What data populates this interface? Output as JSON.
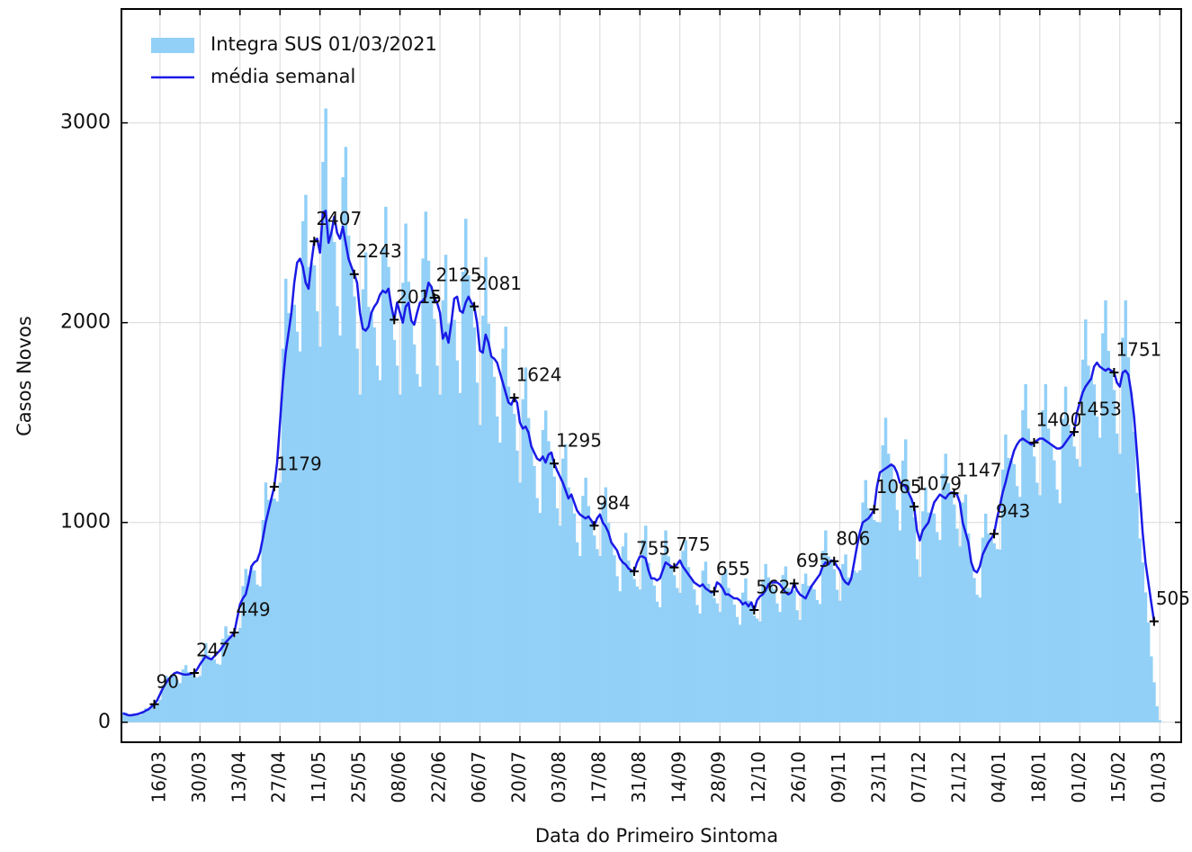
{
  "chart_data": {
    "type": "bar",
    "xlabel": "Data do Primeiro Sintoma",
    "ylabel": "Casos Novos",
    "ylim": [
      -100,
      3570
    ],
    "yticks": [
      0,
      1000,
      2000,
      3000
    ],
    "grid": true,
    "legend": "upper left",
    "categories": [
      null,
      null,
      null,
      null,
      null,
      null,
      null,
      null,
      null,
      null,
      null,
      null,
      null,
      "16/03",
      null,
      null,
      null,
      null,
      null,
      null,
      null,
      null,
      null,
      null,
      null,
      null,
      null,
      "30/03",
      null,
      null,
      null,
      null,
      null,
      null,
      null,
      null,
      null,
      null,
      null,
      null,
      null,
      "13/04",
      null,
      null,
      null,
      null,
      null,
      null,
      null,
      null,
      null,
      null,
      null,
      null,
      null,
      "27/04",
      null,
      null,
      null,
      null,
      null,
      null,
      null,
      null,
      null,
      null,
      null,
      null,
      null,
      "11/05",
      null,
      null,
      null,
      null,
      null,
      null,
      null,
      null,
      null,
      null,
      null,
      null,
      null,
      "25/05",
      null,
      null,
      null,
      null,
      null,
      null,
      null,
      null,
      null,
      null,
      null,
      null,
      null,
      "08/06",
      null,
      null,
      null,
      null,
      null,
      null,
      null,
      null,
      null,
      null,
      null,
      null,
      null,
      "22/06",
      null,
      null,
      null,
      null,
      null,
      null,
      null,
      null,
      null,
      null,
      null,
      null,
      null,
      "06/07",
      null,
      null,
      null,
      null,
      null,
      null,
      null,
      null,
      null,
      null,
      null,
      null,
      null,
      "20/07",
      null,
      null,
      null,
      null,
      null,
      null,
      null,
      null,
      null,
      null,
      null,
      null,
      null,
      "03/08",
      null,
      null,
      null,
      null,
      null,
      null,
      null,
      null,
      null,
      null,
      null,
      null,
      null,
      "17/08",
      null,
      null,
      null,
      null,
      null,
      null,
      null,
      null,
      null,
      null,
      null,
      null,
      null,
      "31/08",
      null,
      null,
      null,
      null,
      null,
      null,
      null,
      null,
      null,
      null,
      null,
      null,
      null,
      "14/09",
      null,
      null,
      null,
      null,
      null,
      null,
      null,
      null,
      null,
      null,
      null,
      null,
      null,
      "28/09",
      null,
      null,
      null,
      null,
      null,
      null,
      null,
      null,
      null,
      null,
      null,
      null,
      null,
      "12/10",
      null,
      null,
      null,
      null,
      null,
      null,
      null,
      null,
      null,
      null,
      null,
      null,
      null,
      "26/10",
      null,
      null,
      null,
      null,
      null,
      null,
      null,
      null,
      null,
      null,
      null,
      null,
      null,
      "09/11",
      null,
      null,
      null,
      null,
      null,
      null,
      null,
      null,
      null,
      null,
      null,
      null,
      null,
      "23/11",
      null,
      null,
      null,
      null,
      null,
      null,
      null,
      null,
      null,
      null,
      null,
      null,
      null,
      "07/12",
      null,
      null,
      null,
      null,
      null,
      null,
      null,
      null,
      null,
      null,
      null,
      null,
      null,
      "21/12",
      null,
      null,
      null,
      null,
      null,
      null,
      null,
      null,
      null,
      null,
      null,
      null,
      null,
      "04/01",
      null,
      null,
      null,
      null,
      null,
      null,
      null,
      null,
      null,
      null,
      null,
      null,
      null,
      "18/01",
      null,
      null,
      null,
      null,
      null,
      null,
      null,
      null,
      null,
      null,
      null,
      null,
      null,
      "01/02",
      null,
      null,
      null,
      null,
      null,
      null,
      null,
      null,
      null,
      null,
      null,
      null,
      null,
      "15/02",
      null,
      null,
      null,
      null,
      null,
      null,
      null,
      null,
      null,
      null,
      null,
      null,
      null,
      "01/03"
    ],
    "series": [
      {
        "name": "Integra SUS 01/03/2021",
        "type": "bar",
        "color": "#92d0f7",
        "values": [
          50,
          48,
          37,
          35,
          36,
          34,
          36,
          55,
          70,
          68,
          78,
          86,
          94,
          112,
          187,
          234,
          226,
          230,
          233,
          213,
          196,
          264,
          286,
          252,
          244,
          235,
          225,
          232,
          341,
          396,
          336,
          315,
          314,
          293,
          288,
          418,
          480,
          436,
          430,
          427,
          442,
          472,
          682,
          768,
          735,
          780,
          760,
          689,
          680,
          1012,
          1200,
          1113,
          1120,
          1120,
          1105,
          1200,
          1870,
          2220,
          2048,
          2050,
          2090,
          1955,
          1856,
          2508,
          2640,
          2279,
          2300,
          2287,
          2057,
          1880,
          2805,
          3072,
          2520,
          2450,
          2404,
          2083,
          1936,
          2728,
          2880,
          2436,
          2280,
          2131,
          1870,
          1640,
          2167,
          2352,
          2079,
          2050,
          1976,
          1785,
          1712,
          2376,
          2580,
          2279,
          2080,
          1914,
          1785,
          1640,
          2200,
          2496,
          2205,
          2010,
          1891,
          1743,
          1680,
          2321,
          2556,
          2310,
          2180,
          2019,
          1785,
          1640,
          2112,
          2340,
          1995,
          2000,
          2014,
          1811,
          1648,
          2255,
          2520,
          2237,
          2100,
          1977,
          1700,
          1488,
          2035,
          2328,
          1995,
          1830,
          1729,
          1530,
          1400,
          1870,
          1980,
          1680,
          1590,
          1543,
          1360,
          1200,
          1617,
          1776,
          1523,
          1380,
          1283,
          1122,
          1048,
          1463,
          1560,
          1407,
          1350,
          1230,
          1071,
          984,
          1320,
          1392,
          1176,
          1140,
          1045,
          901,
          832,
          1133,
          1224,
          1082,
          1010,
          935,
          867,
          832,
          1100,
          1176,
          998,
          900,
          836,
          731,
          656,
          880,
          948,
          809,
          760,
          717,
          680,
          664,
          913,
          984,
          798,
          720,
          684,
          604,
          576,
          836,
          960,
          830,
          780,
          736,
          672,
          648,
          858,
          912,
          777,
          720,
          665,
          587,
          544,
          759,
          804,
          693,
          650,
          622,
          595,
          552,
          737,
          768,
          672,
          630,
          589,
          527,
          488,
          649,
          720,
          609,
          600,
          534,
          519,
          504,
          704,
          792,
          725,
          700,
          665,
          595,
          552,
          737,
          780,
          672,
          650,
          660,
          561,
          512,
          693,
          744,
          683,
          680,
          665,
          612,
          592,
          858,
          960,
          830,
          810,
          766,
          663,
          608,
          792,
          840,
          725,
          720,
          760,
          748,
          760,
          1100,
          1212,
          1071,
          1040,
          1012,
          1003,
          1000,
          1386,
          1524,
          1344,
          1290,
          1216,
          1063,
          960,
          1309,
          1416,
          1208,
          1120,
          1025,
          816,
          728,
          1056,
          1176,
          1050,
          1050,
          1045,
          952,
          912,
          1243,
          1344,
          1197,
          1150,
          1090,
          969,
          880,
          1100,
          1140,
          945,
          800,
          722,
          638,
          624,
          924,
          1044,
          945,
          920,
          896,
          867,
          864,
          1265,
          1440,
          1323,
          1310,
          1292,
          1182,
          1128,
          1562,
          1692,
          1470,
          1390,
          1330,
          1199,
          1136,
          1562,
          1692,
          1470,
          1390,
          1311,
          1165,
          1096,
          1518,
          1680,
          1491,
          1440,
          1380,
          1318,
          1280,
          1815,
          2016,
          1785,
          1720,
          1691,
          1530,
          1424,
          1947,
          2112,
          1859,
          1760,
          1663,
          1445,
          1344,
          1925,
          2112,
          1827,
          1650,
          1454,
          1148,
          920,
          800,
          650,
          500,
          330,
          200,
          80,
          10
        ]
      },
      {
        "name": "média  semanal",
        "type": "line",
        "color": "#1a1ae6",
        "values": [
          45,
          40,
          35,
          35,
          38,
          40,
          45,
          50,
          58,
          65,
          78,
          90,
          110,
          140,
          170,
          195,
          215,
          230,
          245,
          250,
          245,
          240,
          238,
          240,
          244,
          247,
          265,
          290,
          310,
          330,
          320,
          315,
          330,
          345,
          360,
          380,
          400,
          415,
          430,
          449,
          520,
          590,
          620,
          640,
          700,
          780,
          800,
          810,
          850,
          920,
          1000,
          1060,
          1120,
          1179,
          1300,
          1500,
          1700,
          1850,
          1950,
          2050,
          2200,
          2300,
          2320,
          2280,
          2200,
          2170,
          2300,
          2407,
          2420,
          2350,
          2550,
          2560,
          2400,
          2450,
          2530,
          2450,
          2420,
          2480,
          2400,
          2320,
          2280,
          2243,
          2200,
          2050,
          1970,
          1960,
          1980,
          2050,
          2080,
          2100,
          2140,
          2160,
          2150,
          2170,
          2080,
          2015,
          2100,
          2050,
          2000,
          2080,
          2100,
          2010,
          1990,
          2050,
          2100,
          2110,
          2130,
          2200,
          2180,
          2125,
          2100,
          2050,
          1920,
          1950,
          1900,
          2000,
          2120,
          2130,
          2060,
          2050,
          2100,
          2130,
          2100,
          2081,
          2000,
          1860,
          1850,
          1940,
          1900,
          1830,
          1820,
          1800,
          1750,
          1700,
          1650,
          1600,
          1590,
          1624,
          1600,
          1500,
          1470,
          1480,
          1450,
          1380,
          1350,
          1320,
          1310,
          1330,
          1300,
          1340,
          1350,
          1295,
          1260,
          1230,
          1200,
          1160,
          1120,
          1140,
          1100,
          1060,
          1040,
          1030,
          1020,
          1030,
          1010,
          984,
          1020,
          1040,
          1000,
          980,
          950,
          900,
          880,
          860,
          820,
          800,
          790,
          770,
          760,
          755,
          800,
          830,
          830,
          820,
          760,
          720,
          720,
          710,
          720,
          760,
          800,
          790,
          780,
          775,
          790,
          810,
          780,
          760,
          740,
          720,
          700,
          690,
          680,
          690,
          670,
          660,
          650,
          655,
          700,
          690,
          670,
          640,
          640,
          630,
          620,
          620,
          610,
          590,
          600,
          580,
          600,
          562,
          610,
          630,
          640,
          660,
          690,
          700,
          700,
          700,
          690,
          670,
          650,
          640,
          650,
          695,
          660,
          640,
          630,
          620,
          650,
          680,
          700,
          720,
          740,
          780,
          800,
          790,
          810,
          806,
          780,
          760,
          720,
          700,
          690,
          720,
          800,
          880,
          950,
          1000,
          1010,
          1020,
          1040,
          1065,
          1180,
          1250,
          1260,
          1270,
          1280,
          1290,
          1280,
          1250,
          1200,
          1190,
          1180,
          1150,
          1120,
          1079,
          960,
          910,
          960,
          980,
          1000,
          1050,
          1100,
          1120,
          1140,
          1130,
          1120,
          1140,
          1150,
          1147,
          1140,
          1100,
          1000,
          950,
          900,
          800,
          760,
          750,
          780,
          840,
          870,
          900,
          920,
          943,
          1020,
          1080,
          1150,
          1200,
          1260,
          1310,
          1360,
          1390,
          1410,
          1420,
          1410,
          1400,
          1390,
          1400,
          1410,
          1420,
          1420,
          1410,
          1400,
          1390,
          1380,
          1370,
          1370,
          1380,
          1400,
          1420,
          1440,
          1453,
          1550,
          1600,
          1650,
          1680,
          1700,
          1720,
          1780,
          1800,
          1780,
          1770,
          1760,
          1770,
          1760,
          1751,
          1700,
          1680,
          1750,
          1760,
          1740,
          1650,
          1530,
          1350,
          1150,
          950,
          800,
          700,
          600,
          505,
          null,
          null
        ]
      }
    ]
  }
}
